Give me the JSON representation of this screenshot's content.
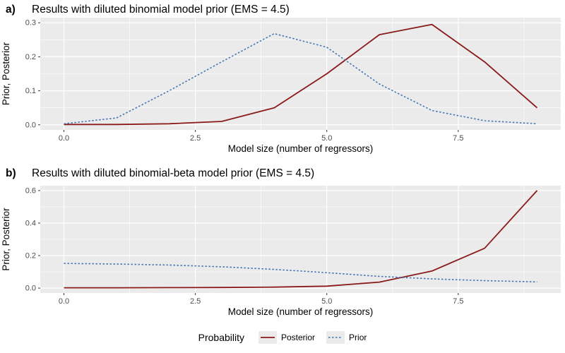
{
  "colors": {
    "posterior": "#8B1A1A",
    "prior": "#4575B4",
    "panel_bg": "#EBEBEB",
    "gridline": "#FFFFFF",
    "tick_text": "#4D4D4D",
    "axis_text": "#000000",
    "tick_mark": "#333333",
    "background": "#FFFFFF",
    "legend_key_bg": "#EBEBEB"
  },
  "legend": {
    "title": "Probability",
    "position": "bottom",
    "items": [
      {
        "label": "Posterior",
        "style": "solid"
      },
      {
        "label": "Prior",
        "style": "dashed"
      }
    ]
  },
  "chart_data": [
    {
      "type": "line",
      "tag": "a)",
      "title": "Results with diluted binomial model prior (EMS = 4.5)",
      "xlabel": "Model size (number of regressors)",
      "ylabel": "Prior, Posterior",
      "x": [
        0,
        1,
        2,
        3,
        4,
        5,
        6,
        7,
        8,
        9
      ],
      "series": [
        {
          "name": "Posterior",
          "style": "solid",
          "color": "#8B1A1A",
          "values": [
            0.001,
            0.001,
            0.003,
            0.01,
            0.05,
            0.15,
            0.265,
            0.295,
            0.185,
            0.05
          ]
        },
        {
          "name": "Prior",
          "style": "dashed",
          "color": "#4575B4",
          "values": [
            0.003,
            0.02,
            0.1,
            0.185,
            0.268,
            0.228,
            0.12,
            0.042,
            0.012,
            0.003
          ]
        }
      ],
      "xlim": [
        0,
        9
      ],
      "ylim": [
        0,
        0.3
      ],
      "xticks": [
        0,
        2.5,
        5,
        7.5
      ],
      "xtick_labels": [
        "0.0",
        "2.5",
        "5.0",
        "7.5"
      ],
      "yticks": [
        0,
        0.1,
        0.2,
        0.3
      ],
      "ytick_labels": [
        "0.0",
        "0.1",
        "0.2",
        "0.3"
      ],
      "grid": true
    },
    {
      "type": "line",
      "tag": "b)",
      "title": "Results with diluted binomial-beta model prior (EMS = 4.5)",
      "xlabel": "Model size (number of regressors)",
      "ylabel": "Prior, Posterior",
      "x": [
        0,
        1,
        2,
        3,
        4,
        5,
        6,
        7,
        8,
        9
      ],
      "series": [
        {
          "name": "Posterior",
          "style": "solid",
          "color": "#8B1A1A",
          "values": [
            0.002,
            0.002,
            0.003,
            0.004,
            0.006,
            0.012,
            0.037,
            0.105,
            0.245,
            0.6
          ]
        },
        {
          "name": "Prior",
          "style": "dashed",
          "color": "#4575B4",
          "values": [
            0.152,
            0.148,
            0.142,
            0.131,
            0.115,
            0.095,
            0.072,
            0.057,
            0.046,
            0.038
          ]
        }
      ],
      "xlim": [
        0,
        9
      ],
      "ylim": [
        0,
        0.6
      ],
      "xticks": [
        0,
        2.5,
        5,
        7.5
      ],
      "xtick_labels": [
        "0.0",
        "2.5",
        "5.0",
        "7.5"
      ],
      "yticks": [
        0,
        0.2,
        0.4,
        0.6
      ],
      "ytick_labels": [
        "0.0",
        "0.2",
        "0.4",
        "0.6"
      ],
      "grid": true
    }
  ]
}
